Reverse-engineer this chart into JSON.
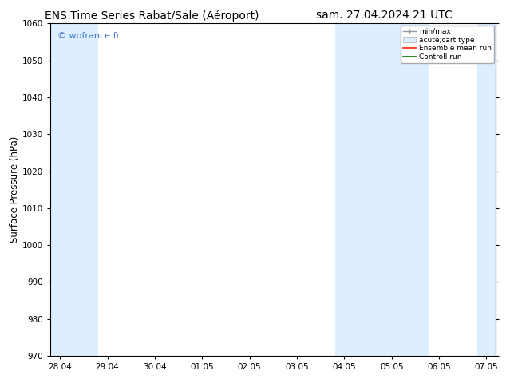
{
  "title_left": "ENS Time Series Rabat/Sale (Aéroport)",
  "title_right": "sam. 27.04.2024 21 UTC",
  "ylabel": "Surface Pressure (hPa)",
  "ylim": [
    970,
    1060
  ],
  "yticks": [
    970,
    980,
    990,
    1000,
    1010,
    1020,
    1030,
    1040,
    1050,
    1060
  ],
  "xtick_labels": [
    "28.04",
    "29.04",
    "30.04",
    "01.05",
    "02.05",
    "03.05",
    "04.05",
    "05.05",
    "06.05",
    "07.05"
  ],
  "shaded_bands": [
    {
      "xmin": 0.0,
      "xmax": 1.0
    },
    {
      "xmin": 6.0,
      "xmax": 8.0
    },
    {
      "xmin": 9.0,
      "xmax": 10.0
    }
  ],
  "band_color": "#ddeeff",
  "watermark": "© wofrance.fr",
  "watermark_color": "#4477cc",
  "background_color": "#ffffff",
  "plot_bg_color": "#ffffff",
  "legend_labels": [
    "min/max",
    "acute;cart type",
    "Ensemble mean run",
    "Controll run"
  ],
  "title_fontsize": 10,
  "tick_fontsize": 7.5,
  "ylabel_fontsize": 8.5
}
